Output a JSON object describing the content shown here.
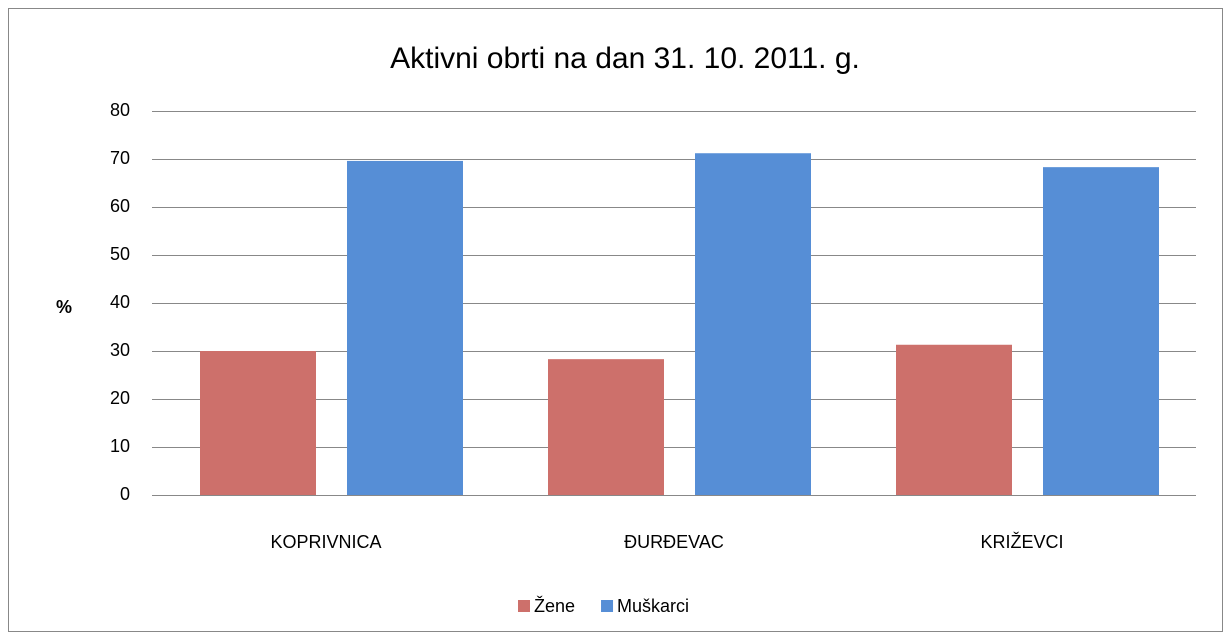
{
  "chart_data": {
    "type": "bar",
    "title": "Aktivni obrti na dan 31. 10. 2011. g.",
    "y_label": "%",
    "categories": [
      "KOPRIVNICA",
      "ĐURĐEVAC",
      "KRIŽEVCI"
    ],
    "series": [
      {
        "name": "Žene",
        "color": "#cd706b",
        "values": [
          30,
          28.3,
          31.3
        ]
      },
      {
        "name": "Muškarci",
        "color": "#568ed6",
        "values": [
          69.6,
          71.2,
          68.3
        ]
      }
    ],
    "ylim": [
      0,
      80
    ],
    "yticks": [
      0,
      10,
      20,
      30,
      40,
      50,
      60,
      70,
      80
    ],
    "grid": true,
    "legend": "bottom"
  }
}
